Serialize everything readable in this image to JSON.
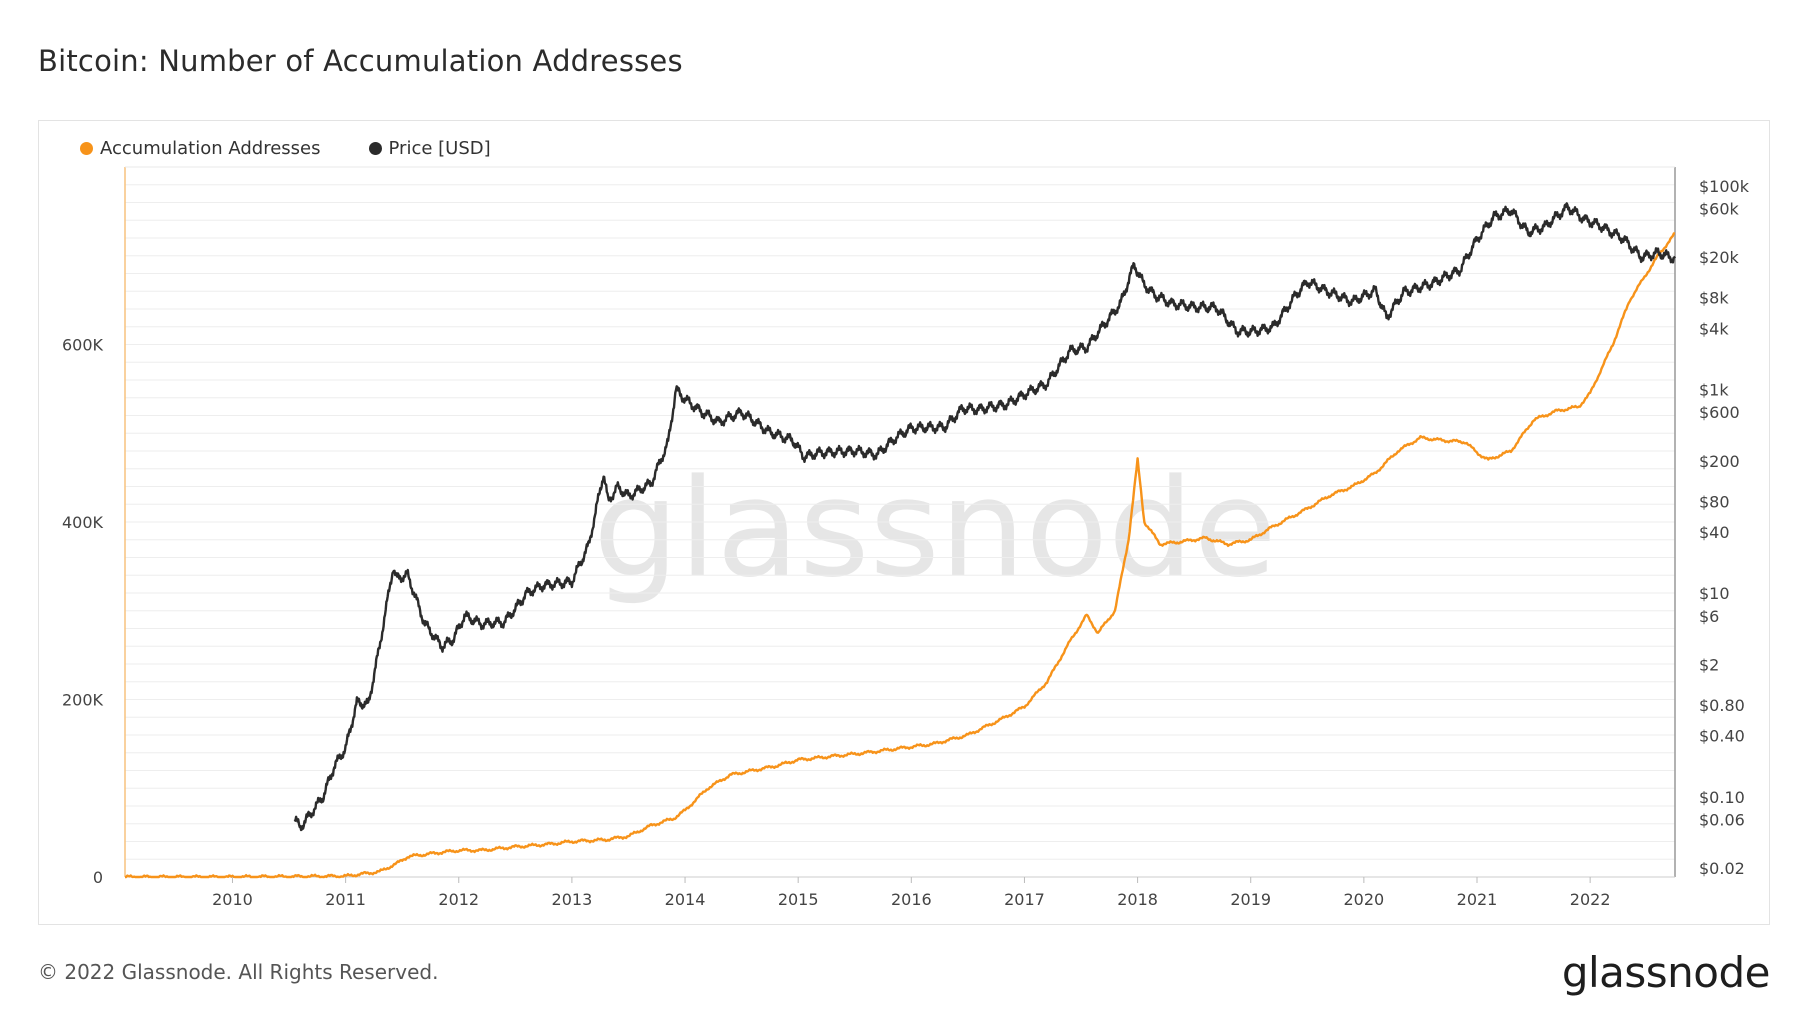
{
  "page": {
    "title": "Bitcoin: Number of Accumulation Addresses",
    "copyright": "© 2022 Glassnode. All Rights Reserved.",
    "logo_text": "glassnode",
    "watermark_text": "glassnode"
  },
  "colors": {
    "accumulation": "#f7931a",
    "price": "#2b2b2b",
    "grid": "#eeeeee",
    "axis": "#999999"
  },
  "chart_data": {
    "type": "line",
    "title": "Bitcoin: Number of Accumulation Addresses",
    "legend_position": "top-left",
    "grid": true,
    "x_ticks": [
      "2010",
      "2011",
      "2012",
      "2013",
      "2014",
      "2015",
      "2016",
      "2017",
      "2018",
      "2019",
      "2020",
      "2021",
      "2022"
    ],
    "xlim": [
      2009.05,
      2022.75
    ],
    "y_left": {
      "ticks": [
        "0",
        "200K",
        "400K",
        "600K"
      ],
      "tick_values": [
        0,
        200000,
        400000,
        600000
      ],
      "ylim": [
        0,
        800000
      ]
    },
    "y_right": {
      "scale": "log",
      "ticks": [
        "$100k",
        "$60k",
        "$20k",
        "$8k",
        "$4k",
        "$1k",
        "$600",
        "$200",
        "$80",
        "$40",
        "$10",
        "$6",
        "$2",
        "$0.80",
        "$0.40",
        "$0.10",
        "$0.06",
        "$0.02"
      ],
      "tick_values": [
        100000,
        60000,
        20000,
        8000,
        4000,
        1000,
        600,
        200,
        80,
        40,
        10,
        6,
        2,
        0.8,
        0.4,
        0.1,
        0.06,
        0.02
      ],
      "ylim": [
        0.02,
        100000
      ]
    },
    "series": [
      {
        "name": "Accumulation Addresses",
        "axis": "left",
        "points": [
          [
            2009.05,
            0
          ],
          [
            2010.0,
            0
          ],
          [
            2011.0,
            1000
          ],
          [
            2011.3,
            6000
          ],
          [
            2011.45,
            15000
          ],
          [
            2011.55,
            23000
          ],
          [
            2011.8,
            27000
          ],
          [
            2012.0,
            30000
          ],
          [
            2012.2,
            30000
          ],
          [
            2012.5,
            34000
          ],
          [
            2012.8,
            37000
          ],
          [
            2013.0,
            40000
          ],
          [
            2013.3,
            42000
          ],
          [
            2013.5,
            46000
          ],
          [
            2013.7,
            58000
          ],
          [
            2013.9,
            66000
          ],
          [
            2014.0,
            75000
          ],
          [
            2014.2,
            100000
          ],
          [
            2014.4,
            115000
          ],
          [
            2014.6,
            120000
          ],
          [
            2014.8,
            125000
          ],
          [
            2015.0,
            132000
          ],
          [
            2015.3,
            136000
          ],
          [
            2015.6,
            140000
          ],
          [
            2015.9,
            145000
          ],
          [
            2016.2,
            150000
          ],
          [
            2016.5,
            160000
          ],
          [
            2016.8,
            178000
          ],
          [
            2017.0,
            192000
          ],
          [
            2017.2,
            220000
          ],
          [
            2017.4,
            265000
          ],
          [
            2017.55,
            295000
          ],
          [
            2017.65,
            275000
          ],
          [
            2017.8,
            300000
          ],
          [
            2017.92,
            380000
          ],
          [
            2018.0,
            470000
          ],
          [
            2018.06,
            400000
          ],
          [
            2018.2,
            375000
          ],
          [
            2018.4,
            378000
          ],
          [
            2018.6,
            382000
          ],
          [
            2018.8,
            375000
          ],
          [
            2019.0,
            380000
          ],
          [
            2019.2,
            395000
          ],
          [
            2019.5,
            415000
          ],
          [
            2019.7,
            430000
          ],
          [
            2019.9,
            440000
          ],
          [
            2020.1,
            455000
          ],
          [
            2020.3,
            480000
          ],
          [
            2020.5,
            495000
          ],
          [
            2020.7,
            492000
          ],
          [
            2020.9,
            490000
          ],
          [
            2021.0,
            478000
          ],
          [
            2021.1,
            470000
          ],
          [
            2021.3,
            480000
          ],
          [
            2021.5,
            515000
          ],
          [
            2021.7,
            525000
          ],
          [
            2021.9,
            530000
          ],
          [
            2022.0,
            545000
          ],
          [
            2022.2,
            600000
          ],
          [
            2022.35,
            650000
          ],
          [
            2022.5,
            680000
          ],
          [
            2022.6,
            700000
          ],
          [
            2022.75,
            725000
          ]
        ]
      },
      {
        "name": "Price [USD]",
        "axis": "right",
        "points": [
          [
            2010.55,
            0.06
          ],
          [
            2010.6,
            0.05
          ],
          [
            2010.8,
            0.1
          ],
          [
            2010.9,
            0.2
          ],
          [
            2011.0,
            0.3
          ],
          [
            2011.1,
            0.85
          ],
          [
            2011.2,
            0.8
          ],
          [
            2011.3,
            3
          ],
          [
            2011.42,
            18
          ],
          [
            2011.45,
            14
          ],
          [
            2011.55,
            15
          ],
          [
            2011.7,
            5
          ],
          [
            2011.85,
            3
          ],
          [
            2011.95,
            3.5
          ],
          [
            2012.05,
            6
          ],
          [
            2012.2,
            5
          ],
          [
            2012.4,
            5.2
          ],
          [
            2012.5,
            7
          ],
          [
            2012.6,
            10
          ],
          [
            2012.75,
            12
          ],
          [
            2012.9,
            12.5
          ],
          [
            2013.0,
            13
          ],
          [
            2013.15,
            30
          ],
          [
            2013.28,
            150
          ],
          [
            2013.32,
            80
          ],
          [
            2013.4,
            110
          ],
          [
            2013.5,
            90
          ],
          [
            2013.7,
            120
          ],
          [
            2013.85,
            300
          ],
          [
            2013.92,
            1000
          ],
          [
            2014.0,
            800
          ],
          [
            2014.15,
            600
          ],
          [
            2014.3,
            480
          ],
          [
            2014.5,
            600
          ],
          [
            2014.75,
            380
          ],
          [
            2014.95,
            320
          ],
          [
            2015.05,
            220
          ],
          [
            2015.2,
            240
          ],
          [
            2015.5,
            250
          ],
          [
            2015.7,
            230
          ],
          [
            2015.85,
            330
          ],
          [
            2016.0,
            420
          ],
          [
            2016.3,
            430
          ],
          [
            2016.45,
            650
          ],
          [
            2016.6,
            640
          ],
          [
            2016.85,
            720
          ],
          [
            2017.0,
            900
          ],
          [
            2017.2,
            1150
          ],
          [
            2017.4,
            2400
          ],
          [
            2017.55,
            2600
          ],
          [
            2017.7,
            4300
          ],
          [
            2017.85,
            7000
          ],
          [
            2017.97,
            17000
          ],
          [
            2018.05,
            11000
          ],
          [
            2018.15,
            8500
          ],
          [
            2018.3,
            7000
          ],
          [
            2018.5,
            6500
          ],
          [
            2018.7,
            6400
          ],
          [
            2018.87,
            3800
          ],
          [
            2019.0,
            3700
          ],
          [
            2019.2,
            4100
          ],
          [
            2019.4,
            8500
          ],
          [
            2019.5,
            11500
          ],
          [
            2019.7,
            9000
          ],
          [
            2019.9,
            7300
          ],
          [
            2020.1,
            9500
          ],
          [
            2020.2,
            5100
          ],
          [
            2020.35,
            9000
          ],
          [
            2020.6,
            11000
          ],
          [
            2020.85,
            15000
          ],
          [
            2021.0,
            30000
          ],
          [
            2021.15,
            50000
          ],
          [
            2021.3,
            58000
          ],
          [
            2021.45,
            35000
          ],
          [
            2021.6,
            40000
          ],
          [
            2021.8,
            62000
          ],
          [
            2021.95,
            47000
          ],
          [
            2022.1,
            40000
          ],
          [
            2022.3,
            30000
          ],
          [
            2022.45,
            20000
          ],
          [
            2022.6,
            22000
          ],
          [
            2022.75,
            19500
          ]
        ]
      }
    ]
  }
}
